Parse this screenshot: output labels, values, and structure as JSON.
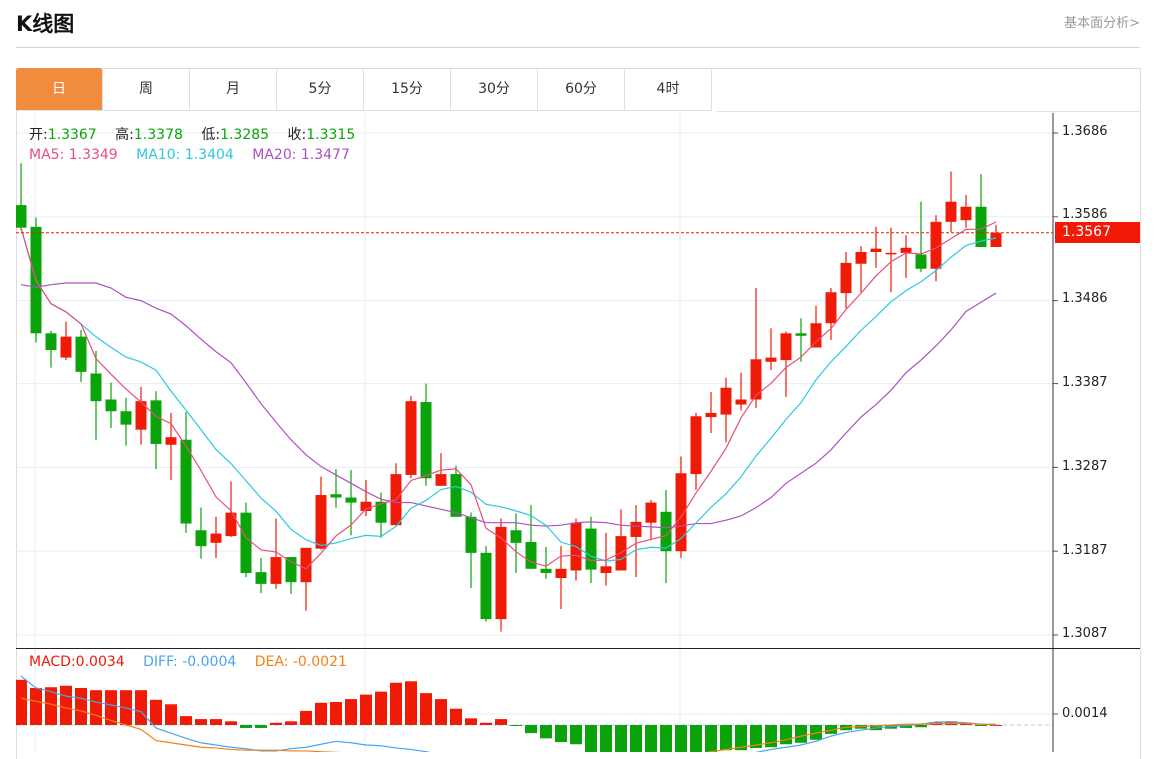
{
  "header": {
    "title": "K线图",
    "link": "基本面分析>"
  },
  "tabs": [
    {
      "label": "日",
      "active": true
    },
    {
      "label": "周",
      "active": false
    },
    {
      "label": "月",
      "active": false
    },
    {
      "label": "5分",
      "active": false
    },
    {
      "label": "15分",
      "active": false
    },
    {
      "label": "30分",
      "active": false
    },
    {
      "label": "60分",
      "active": false
    },
    {
      "label": "4时",
      "active": false
    }
  ],
  "ohlc_info": {
    "open_label": "开:",
    "open": "1.3367",
    "high_label": "高:",
    "high": "1.3378",
    "low_label": "低:",
    "low": "1.3285",
    "close_label": "收:",
    "close": "1.3315"
  },
  "ma_info": {
    "ma5": "MA5: 1.3349",
    "ma10": "MA10: 1.3404",
    "ma20": "MA20: 1.3477"
  },
  "macd_info": {
    "macd": "MACD:0.0034",
    "diff": "DIFF: -0.0004",
    "dea": "DEA: -0.0021"
  },
  "current_price": "1.3567",
  "colors": {
    "up": "#f01b06",
    "down": "#0aa30a",
    "ma5": "#e94e7b",
    "ma10": "#2ec7e0",
    "ma20": "#b04fc4",
    "diff": "#4ba3f0",
    "dea": "#f57f17",
    "tab_active": "#f18c3e"
  },
  "chart_data": {
    "type": "candlestick",
    "price_axis": {
      "ticks": [
        "1.3686",
        "1.3586",
        "1.3486",
        "1.3387",
        "1.3287",
        "1.3187",
        "1.3087"
      ],
      "range": [
        1.3087,
        1.3686
      ]
    },
    "macd_axis": {
      "ticks": [
        "0.0014"
      ]
    },
    "ohlc_fields": [
      "open",
      "high",
      "low",
      "close"
    ],
    "ohlc": [
      [
        1.36,
        1.365,
        1.357,
        1.3573
      ],
      [
        1.3574,
        1.3585,
        1.3436,
        1.3447
      ],
      [
        1.3447,
        1.345,
        1.3406,
        1.3427
      ],
      [
        1.3418,
        1.3461,
        1.3415,
        1.3443
      ],
      [
        1.3443,
        1.3451,
        1.3389,
        1.3401
      ],
      [
        1.3399,
        1.3426,
        1.332,
        1.3366
      ],
      [
        1.3368,
        1.3388,
        1.3334,
        1.3354
      ],
      [
        1.3354,
        1.337,
        1.3313,
        1.3338
      ],
      [
        1.3332,
        1.3383,
        1.3314,
        1.3366
      ],
      [
        1.3367,
        1.3378,
        1.3285,
        1.3315
      ],
      [
        1.3314,
        1.3352,
        1.3272,
        1.3323
      ],
      [
        1.332,
        1.3353,
        1.3209,
        1.322
      ],
      [
        1.3212,
        1.3239,
        1.3178,
        1.3193
      ],
      [
        1.3197,
        1.3228,
        1.3179,
        1.3208
      ],
      [
        1.3205,
        1.327,
        1.3204,
        1.3233
      ],
      [
        1.3233,
        1.3245,
        1.3156,
        1.3161
      ],
      [
        1.3162,
        1.3179,
        1.3137,
        1.3148
      ],
      [
        1.3148,
        1.3226,
        1.3142,
        1.318
      ],
      [
        1.318,
        1.318,
        1.3136,
        1.315
      ],
      [
        1.315,
        1.3191,
        1.3116,
        1.3191
      ],
      [
        1.319,
        1.3276,
        1.3189,
        1.3254
      ],
      [
        1.3255,
        1.3285,
        1.3239,
        1.3251
      ],
      [
        1.3251,
        1.3284,
        1.3206,
        1.3245
      ],
      [
        1.3235,
        1.3272,
        1.3229,
        1.3246
      ],
      [
        1.3246,
        1.3257,
        1.3203,
        1.3221
      ],
      [
        1.3218,
        1.3292,
        1.3218,
        1.3279
      ],
      [
        1.3278,
        1.3372,
        1.3274,
        1.3366
      ],
      [
        1.3365,
        1.3387,
        1.3265,
        1.3274
      ],
      [
        1.3265,
        1.3304,
        1.3265,
        1.3279
      ],
      [
        1.3279,
        1.3289,
        1.3228,
        1.3228
      ],
      [
        1.3228,
        1.3233,
        1.3143,
        1.3185
      ],
      [
        1.3185,
        1.3193,
        1.3103,
        1.3106
      ],
      [
        1.3106,
        1.3226,
        1.3091,
        1.3216
      ],
      [
        1.3212,
        1.3232,
        1.3161,
        1.3197
      ],
      [
        1.3198,
        1.3242,
        1.3166,
        1.3166
      ],
      [
        1.3166,
        1.3192,
        1.3154,
        1.3161
      ],
      [
        1.3155,
        1.3193,
        1.3118,
        1.3166
      ],
      [
        1.3164,
        1.3226,
        1.3152,
        1.3221
      ],
      [
        1.3214,
        1.3228,
        1.3149,
        1.3165
      ],
      [
        1.3161,
        1.3209,
        1.3146,
        1.3169
      ],
      [
        1.3164,
        1.3237,
        1.3164,
        1.3205
      ],
      [
        1.3204,
        1.3242,
        1.3156,
        1.3222
      ],
      [
        1.3221,
        1.3248,
        1.32,
        1.3245
      ],
      [
        1.3234,
        1.326,
        1.3149,
        1.3187
      ],
      [
        1.3187,
        1.33,
        1.3179,
        1.328
      ],
      [
        1.3279,
        1.3352,
        1.326,
        1.3348
      ],
      [
        1.3347,
        1.3377,
        1.3328,
        1.3352
      ],
      [
        1.335,
        1.3394,
        1.3317,
        1.3382
      ],
      [
        1.3362,
        1.34,
        1.3355,
        1.3368
      ],
      [
        1.3368,
        1.3501,
        1.3358,
        1.3416
      ],
      [
        1.3413,
        1.3453,
        1.3403,
        1.3418
      ],
      [
        1.3415,
        1.3449,
        1.3371,
        1.3447
      ],
      [
        1.3447,
        1.3465,
        1.3413,
        1.3444
      ],
      [
        1.343,
        1.348,
        1.343,
        1.3459
      ],
      [
        1.3459,
        1.3501,
        1.3439,
        1.3496
      ],
      [
        1.3495,
        1.3544,
        1.3477,
        1.3531
      ],
      [
        1.353,
        1.3551,
        1.3496,
        1.3544
      ],
      [
        1.3544,
        1.3574,
        1.3525,
        1.3548
      ],
      [
        1.3542,
        1.3573,
        1.3496,
        1.3543
      ],
      [
        1.3543,
        1.3564,
        1.3513,
        1.3549
      ],
      [
        1.3541,
        1.3604,
        1.352,
        1.3524
      ],
      [
        1.3524,
        1.3588,
        1.3509,
        1.358
      ],
      [
        1.358,
        1.364,
        1.3568,
        1.3604
      ],
      [
        1.3582,
        1.3612,
        1.3573,
        1.3598
      ],
      [
        1.3598,
        1.3637,
        1.355,
        1.355
      ],
      [
        1.355,
        1.3576,
        1.355,
        1.3567
      ]
    ],
    "ma20": [
      1.3505,
      1.3502,
      1.3505,
      1.3507,
      1.3507,
      1.3507,
      1.3501,
      1.349,
      1.3486,
      1.3477,
      1.347,
      1.3456,
      1.344,
      1.3425,
      1.3412,
      1.3388,
      1.3363,
      1.3341,
      1.332,
      1.3302,
      1.3288,
      1.3278,
      1.3268,
      1.3258,
      1.3249,
      1.3245,
      1.3245,
      1.3241,
      1.3237,
      1.3233,
      1.3227,
      1.3221,
      1.3221,
      1.3221,
      1.3218,
      1.3217,
      1.3218,
      1.3221,
      1.3222,
      1.3221,
      1.3218,
      1.3217,
      1.3216,
      1.3215,
      1.3217,
      1.322,
      1.322,
      1.3224,
      1.3229,
      1.3239,
      1.3251,
      1.3268,
      1.328,
      1.3292,
      1.3308,
      1.3328,
      1.3347,
      1.3362,
      1.3379,
      1.34,
      1.3415,
      1.3432,
      1.3451,
      1.3473,
      1.3484,
      1.3495
    ],
    "macd": [
      0.0061,
      0.005,
      0.0051,
      0.0053,
      0.005,
      0.0047,
      0.0047,
      0.0047,
      0.0047,
      0.0034,
      0.0028,
      0.0012,
      0.0008,
      0.0008,
      0.0005,
      -0.0004,
      -0.0004,
      0.0003,
      0.0005,
      0.0019,
      0.003,
      0.0031,
      0.0035,
      0.0041,
      0.0045,
      0.0057,
      0.0059,
      0.0043,
      0.0035,
      0.0022,
      0.0009,
      0.0003,
      0.0008,
      -0.0001,
      -0.0011,
      -0.0018,
      -0.0023,
      -0.0026,
      -0.0041,
      -0.0043,
      -0.0045,
      -0.0046,
      -0.0046,
      -0.0045,
      -0.0043,
      -0.0041,
      -0.0038,
      -0.0034,
      -0.0034,
      -0.0031,
      -0.003,
      -0.0026,
      -0.0024,
      -0.002,
      -0.0012,
      -0.0007,
      -0.0005,
      -0.0007,
      -0.0005,
      -0.0004,
      -0.0003,
      0.0004,
      0.0005,
      0.0003,
      -0.0001,
      0.0
    ],
    "diff": [
      0.0066,
      0.005,
      0.0045,
      0.0039,
      0.0036,
      0.0031,
      0.0027,
      0.0023,
      0.0018,
      -0.0004,
      -0.0011,
      -0.0018,
      -0.0024,
      -0.0027,
      -0.003,
      -0.0032,
      -0.0035,
      -0.0035,
      -0.0032,
      -0.003,
      -0.0026,
      -0.0022,
      -0.0024,
      -0.0027,
      -0.0028,
      -0.0031,
      -0.0033,
      -0.0036,
      -0.004,
      -0.0045,
      -0.0052,
      -0.006,
      -0.0064,
      -0.0067,
      -0.007,
      -0.0073,
      -0.0075,
      -0.0076,
      -0.0076,
      -0.0075,
      -0.0073,
      -0.007,
      -0.0067,
      -0.0065,
      -0.006,
      -0.0055,
      -0.005,
      -0.0045,
      -0.0041,
      -0.0037,
      -0.0033,
      -0.003,
      -0.0027,
      -0.0022,
      -0.0015,
      -0.001,
      -0.0007,
      -0.0004,
      -0.0002,
      -0.0001,
      0.0001,
      0.0004,
      0.0004,
      0.0003,
      0.0001,
      0.0001
    ],
    "dea": [
      0.0036,
      0.0032,
      0.0028,
      0.0023,
      0.0019,
      0.0013,
      0.0006,
      0.0,
      -0.0006,
      -0.0021,
      -0.0024,
      -0.0027,
      -0.003,
      -0.0031,
      -0.0033,
      -0.0034,
      -0.0034,
      -0.0034,
      -0.0035,
      -0.0035,
      -0.0036,
      -0.0037,
      -0.0038,
      -0.004,
      -0.0042,
      -0.0044,
      -0.0046,
      -0.0048,
      -0.005,
      -0.0053,
      -0.0056,
      -0.0059,
      -0.0062,
      -0.0064,
      -0.0066,
      -0.0067,
      -0.0066,
      -0.0064,
      -0.0062,
      -0.006,
      -0.0057,
      -0.0054,
      -0.005,
      -0.0047,
      -0.0043,
      -0.004,
      -0.0036,
      -0.0033,
      -0.003,
      -0.0027,
      -0.0024,
      -0.002,
      -0.0015,
      -0.0011,
      -0.0007,
      -0.0003,
      -0.0002,
      -0.0001,
      0.0,
      0.0001,
      0.0001,
      0.0002,
      0.0002,
      0.0002,
      0.0001,
      0.0
    ],
    "current_price": 1.3567
  }
}
